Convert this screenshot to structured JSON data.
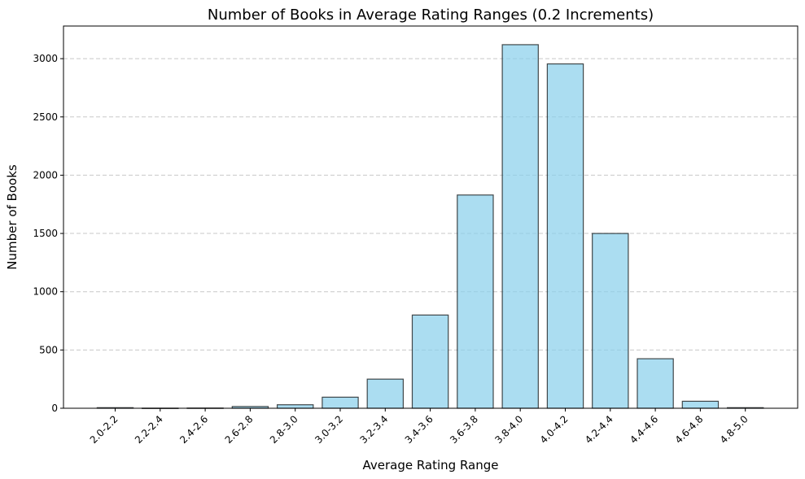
{
  "chart_data": {
    "type": "bar",
    "title": "Number of Books in Average Rating Ranges (0.2 Increments)",
    "xlabel": "Average Rating Range",
    "ylabel": "Number of Books",
    "categories": [
      "2.0-2.2",
      "2.2-2.4",
      "2.4-2.6",
      "2.6-2.8",
      "2.8-3.0",
      "3.0-3.2",
      "3.2-3.4",
      "3.4-3.6",
      "3.6-3.8",
      "3.8-4.0",
      "4.0-4.2",
      "4.2-4.4",
      "4.4-4.6",
      "4.6-4.8",
      "4.8-5.0"
    ],
    "values": [
      5,
      1,
      2,
      15,
      30,
      95,
      250,
      800,
      1830,
      3120,
      2955,
      1500,
      425,
      60,
      5
    ],
    "ylim": [
      0,
      3280
    ],
    "yticks": [
      0,
      500,
      1000,
      1500,
      2000,
      2500,
      3000
    ],
    "grid": "y-dashed",
    "x_tick_rotation": 45,
    "colors": {
      "bar_fill": "#87CEEB",
      "bar_opacity": 0.7,
      "bar_edge": "#000000",
      "grid": "#b0b0b0"
    }
  }
}
